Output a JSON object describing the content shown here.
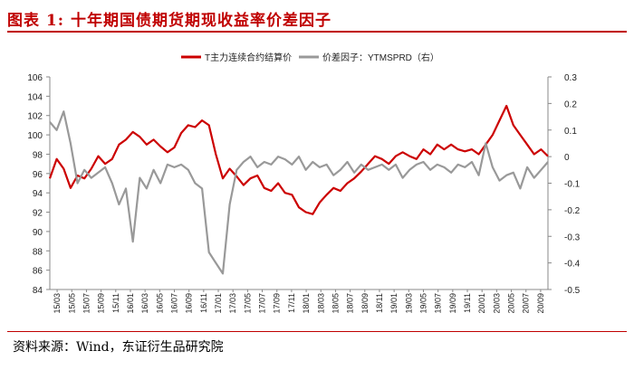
{
  "title": "图表 1:  十年期国债期货期现收益率价差因子",
  "source": "资料来源：Wind，东证衍生品研究院",
  "chart_data": {
    "type": "line",
    "title": "图表 1:  十年期国债期货期现收益率价差因子",
    "legend": [
      "T主力连续合约结算价",
      "价差因子：YTMSPRD（右）"
    ],
    "legend_position": "top-center",
    "colors": {
      "left_series": "#cc0000",
      "right_series": "#999999",
      "accent": "#c00000"
    },
    "y_left": {
      "min": 84,
      "max": 106,
      "ticks": [
        "84",
        "86",
        "88",
        "90",
        "92",
        "94",
        "96",
        "98",
        "100",
        "102",
        "104",
        "106"
      ]
    },
    "y_right": {
      "min": -0.5,
      "max": 0.3,
      "ticks": [
        "-0.5",
        "-0.4",
        "-0.3",
        "-0.2",
        "-0.1",
        "0",
        "0.1",
        "0.2",
        "0.3"
      ]
    },
    "x_ticks": [
      "15/03",
      "15/05",
      "15/07",
      "15/09",
      "15/11",
      "16/01",
      "16/03",
      "16/05",
      "16/07",
      "16/09",
      "16/11",
      "17/01",
      "17/03",
      "17/05",
      "17/07",
      "17/09",
      "17/11",
      "18/01",
      "18/03",
      "18/05",
      "18/07",
      "18/09",
      "18/11",
      "19/01",
      "19/03",
      "19/05",
      "19/07",
      "19/09",
      "19/11",
      "20/01",
      "20/03",
      "20/05",
      "20/07",
      "20/09"
    ],
    "series": [
      {
        "name": "T主力连续合约结算价",
        "axis": "left",
        "values": [
          95.5,
          97.5,
          96.5,
          94.5,
          95.8,
          95.5,
          96.5,
          97.8,
          97.0,
          97.5,
          99.0,
          99.5,
          100.3,
          99.8,
          99.0,
          99.5,
          98.8,
          98.2,
          98.7,
          100.2,
          101.0,
          100.8,
          101.5,
          101.0,
          98.0,
          95.5,
          96.5,
          95.7,
          94.8,
          95.5,
          95.8,
          94.5,
          94.2,
          95.0,
          94.0,
          93.8,
          92.5,
          92.0,
          91.8,
          93.0,
          93.8,
          94.5,
          94.2,
          95.0,
          95.5,
          96.2,
          97.0,
          97.8,
          97.5,
          97.0,
          97.8,
          98.2,
          97.8,
          97.5,
          98.5,
          98.0,
          99.0,
          98.5,
          99.0,
          98.5,
          98.3,
          98.5,
          98.0,
          99.0,
          100.0,
          101.5,
          103.0,
          101.0,
          100.0,
          99.0,
          98.0,
          98.5,
          97.8
        ]
      },
      {
        "name": "价差因子：YTMSPRD（右）",
        "axis": "right",
        "values": [
          0.13,
          0.1,
          0.17,
          0.05,
          -0.1,
          -0.05,
          -0.08,
          -0.06,
          -0.04,
          -0.1,
          -0.18,
          -0.12,
          -0.32,
          -0.08,
          -0.12,
          -0.05,
          -0.1,
          -0.03,
          -0.04,
          -0.03,
          -0.05,
          -0.1,
          -0.12,
          -0.36,
          -0.4,
          -0.44,
          -0.18,
          -0.05,
          -0.02,
          0.0,
          -0.04,
          -0.02,
          -0.03,
          0.0,
          -0.01,
          -0.03,
          0.0,
          -0.05,
          -0.02,
          -0.04,
          -0.03,
          -0.07,
          -0.05,
          -0.02,
          -0.06,
          -0.03,
          -0.05,
          -0.04,
          -0.03,
          -0.05,
          -0.03,
          -0.08,
          -0.05,
          -0.03,
          -0.02,
          -0.05,
          -0.03,
          -0.04,
          -0.06,
          -0.03,
          -0.04,
          -0.02,
          -0.07,
          0.05,
          -0.04,
          -0.09,
          -0.07,
          -0.06,
          -0.12,
          -0.04,
          -0.08,
          -0.05,
          -0.02
        ]
      }
    ]
  }
}
